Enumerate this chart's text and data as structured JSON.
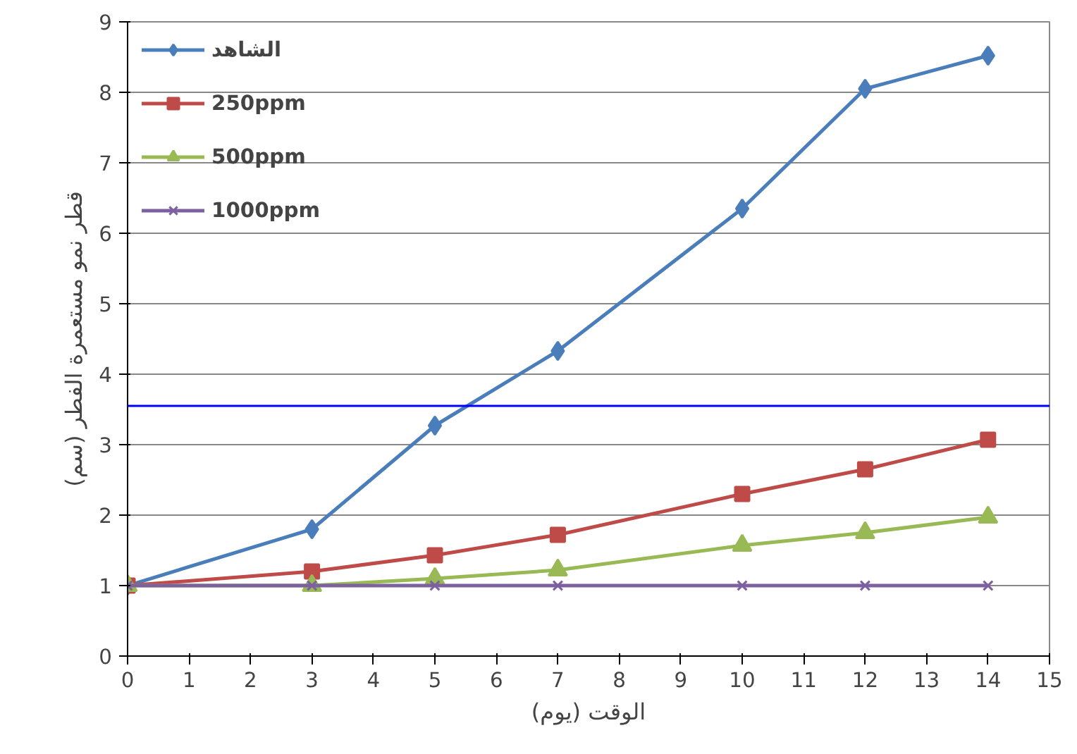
{
  "chart_data": {
    "type": "line",
    "xlabel": "الوقت (يوم)",
    "ylabel": "قطر نمو مستعمرة الفطر (سم)",
    "x": [
      0,
      3,
      5,
      7,
      10,
      12,
      14
    ],
    "series": [
      {
        "name": "الشاهد",
        "color": "#4a7ebb",
        "marker": "diamond",
        "values": [
          1,
          1.8,
          3.27,
          4.33,
          6.35,
          8.05,
          8.52
        ]
      },
      {
        "name": "250ppm",
        "color": "#be4b48",
        "marker": "square",
        "values": [
          1,
          1.2,
          1.43,
          1.72,
          2.3,
          2.65,
          3.07
        ]
      },
      {
        "name": "500ppm",
        "color": "#98b954",
        "marker": "triangle",
        "values": [
          1,
          1.0,
          1.1,
          1.22,
          1.57,
          1.75,
          1.97
        ]
      },
      {
        "name": "1000ppm",
        "color": "#7d60a0",
        "marker": "cross",
        "values": [
          1,
          1,
          1,
          1,
          1,
          1,
          1
        ]
      }
    ],
    "xlim": [
      0,
      15
    ],
    "xticks": [
      0,
      1,
      2,
      3,
      4,
      5,
      6,
      7,
      8,
      9,
      10,
      11,
      12,
      13,
      14,
      15
    ],
    "ylim": [
      0,
      9
    ],
    "yticks": [
      0,
      1,
      2,
      3,
      4,
      5,
      6,
      7,
      8,
      9
    ],
    "ref_lines": [
      {
        "axis": "y",
        "value": 3.55,
        "label": null,
        "color": "#0000ff"
      }
    ],
    "grid": "y",
    "legend": "top left"
  }
}
